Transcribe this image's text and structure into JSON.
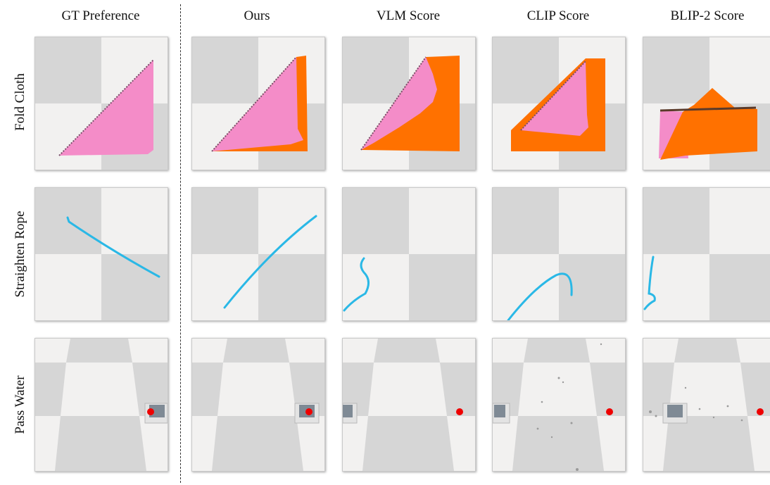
{
  "columns": [
    {
      "label": "GT Preference"
    },
    {
      "label": "Ours"
    },
    {
      "label": "VLM Score"
    },
    {
      "label": "CLIP Score"
    },
    {
      "label": "BLIP-2 Score"
    }
  ],
  "rows": [
    {
      "label": "Fold Cloth"
    },
    {
      "label": "Straighten Rope"
    },
    {
      "label": "Pass Water"
    }
  ],
  "colors": {
    "checker_dark": "#d6d6d6",
    "checker_light": "#f2f1f0",
    "cloth_pink": "#f48cc8",
    "cloth_orange": "#ff7100",
    "rope": "#2ab8e6",
    "target_dot": "#ee0000"
  }
}
